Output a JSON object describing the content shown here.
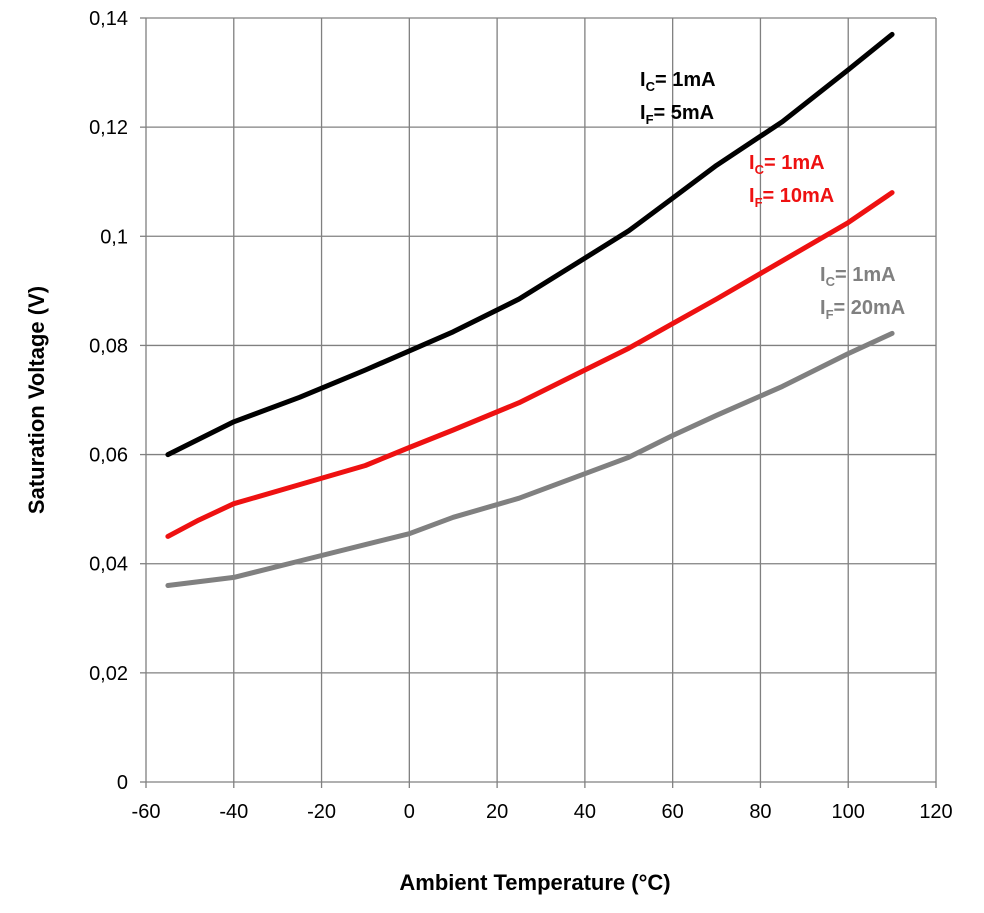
{
  "chart_data": {
    "type": "line",
    "xlabel": "Ambient Temperature (°C)",
    "ylabel": "Saturation Voltage (V)",
    "xlim": [
      -60,
      120
    ],
    "ylim": [
      0,
      0.14
    ],
    "grid": true,
    "x_ticks": [
      "-60",
      "-40",
      "-20",
      "0",
      "20",
      "40",
      "60",
      "80",
      "100",
      "120"
    ],
    "y_ticks": [
      "0",
      "0,02",
      "0,04",
      "0,06",
      "0,08",
      "0,1",
      "0,12",
      "0,14"
    ],
    "colors": {
      "ic1_if5": "#000000",
      "ic1_if10": "#ee1111",
      "ic1_if20": "#808080",
      "grid": "#808080"
    },
    "series": [
      {
        "key": "ic1_if5",
        "annotation": {
          "ic_symbol": "I",
          "ic_sub": "C",
          "ic_value": "= 1mA",
          "if_symbol": "I",
          "if_sub": "F",
          "if_value": "= 5mA"
        },
        "x": [
          -55,
          -40,
          -25,
          -10,
          0,
          10,
          25,
          40,
          50,
          60,
          70,
          85,
          100,
          110
        ],
        "y": [
          0.06,
          0.066,
          0.0705,
          0.0755,
          0.079,
          0.0825,
          0.0885,
          0.096,
          0.101,
          0.107,
          0.113,
          0.121,
          0.1305,
          0.137
        ]
      },
      {
        "key": "ic1_if10",
        "annotation": {
          "ic_symbol": "I",
          "ic_sub": "C",
          "ic_value": "= 1mA",
          "if_symbol": "I",
          "if_sub": "F",
          "if_value": "= 10mA"
        },
        "x": [
          -55,
          -48,
          -40,
          -25,
          -10,
          0,
          10,
          25,
          40,
          50,
          60,
          70,
          85,
          100,
          110
        ],
        "y": [
          0.045,
          0.048,
          0.051,
          0.0545,
          0.058,
          0.0613,
          0.0645,
          0.0695,
          0.0755,
          0.0795,
          0.084,
          0.0885,
          0.0955,
          0.1025,
          0.108
        ]
      },
      {
        "key": "ic1_if20",
        "annotation": {
          "ic_symbol": "I",
          "ic_sub": "C",
          "ic_value": "= 1mA",
          "if_symbol": "I",
          "if_sub": "F",
          "if_value": "= 20mA"
        },
        "x": [
          -55,
          -40,
          -25,
          -10,
          0,
          10,
          25,
          40,
          50,
          60,
          70,
          85,
          100,
          110
        ],
        "y": [
          0.036,
          0.0375,
          0.0405,
          0.0435,
          0.0455,
          0.0485,
          0.052,
          0.0565,
          0.0595,
          0.0635,
          0.0672,
          0.0725,
          0.0785,
          0.0822
        ]
      }
    ]
  }
}
